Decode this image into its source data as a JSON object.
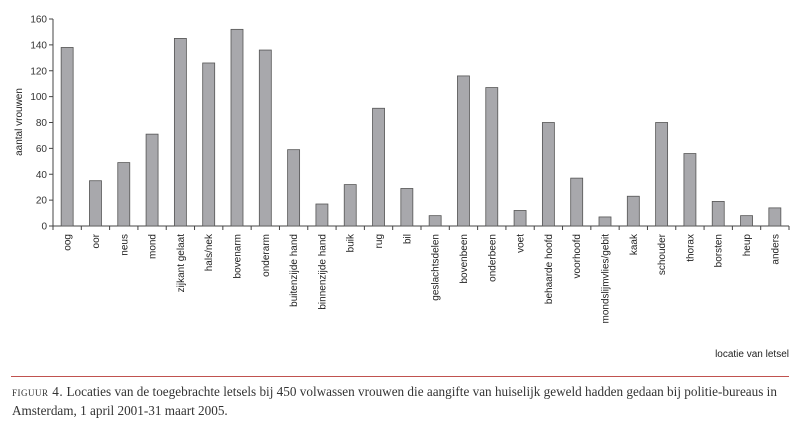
{
  "chart_data": {
    "type": "bar",
    "title": "",
    "xlabel": "locatie van letsel",
    "ylabel": "aantal vrouwen",
    "ylim": [
      0,
      160
    ],
    "yticks": [
      0,
      20,
      40,
      60,
      80,
      100,
      120,
      140,
      160
    ],
    "grid": false,
    "legend": null,
    "categories": [
      "oog",
      "oor",
      "neus",
      "mond",
      "zijkant gelaat",
      "hals/nek",
      "bovenarm",
      "onderarm",
      "buitenzijde hand",
      "binnenzijde hand",
      "buik",
      "rug",
      "bil",
      "geslachtsdelen",
      "bovenbeen",
      "onderbeen",
      "voet",
      "behaarde hoofd",
      "voorhoofd",
      "mondslijmvlies/gebit",
      "kaak",
      "schouder",
      "thorax",
      "borsten",
      "heup",
      "anders"
    ],
    "values": [
      138,
      35,
      49,
      71,
      145,
      126,
      152,
      136,
      59,
      17,
      32,
      91,
      29,
      8,
      116,
      107,
      12,
      80,
      37,
      7,
      23,
      80,
      56,
      19,
      8,
      14
    ],
    "bar_color": "#a8a8ac",
    "bar_edge_color": "#555555"
  },
  "caption": {
    "figure_label": "figuur 4.",
    "text": " Locaties van de toegebrachte letsels bij 450 volwassen vrouwen die aangifte van huiselijk geweld hadden gedaan bij politie-bureaus in Amsterdam, 1 april 2001-31 maart 2005.",
    "rule_color": "#c0524f"
  }
}
